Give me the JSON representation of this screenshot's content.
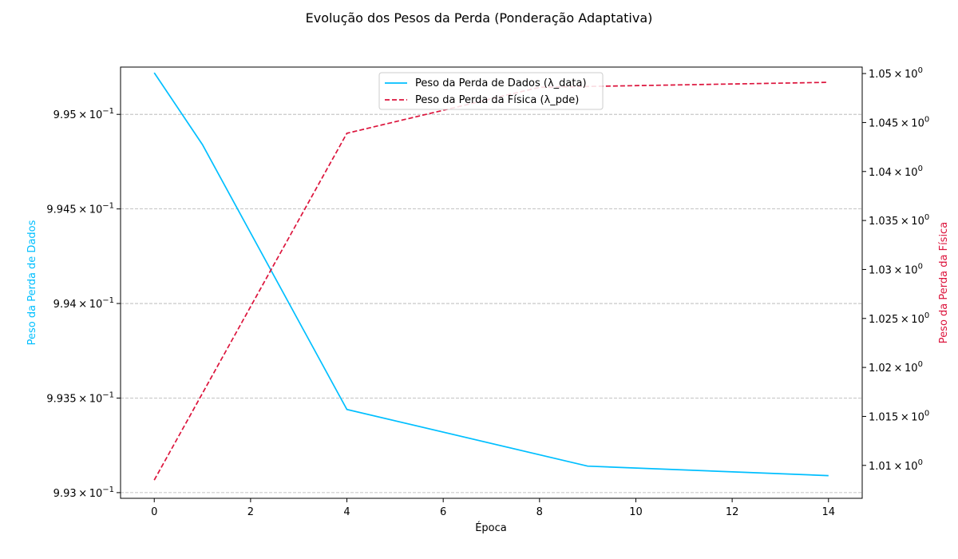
{
  "chart_data": {
    "type": "line",
    "title": "Evolução dos Pesos da Perda (Ponderação Adaptativa)",
    "xlabel": "Época",
    "ylabel_left": "Peso da Perda de Dados",
    "ylabel_right": "Peso da Perda da Física",
    "xlim": [
      -0.7,
      14.7
    ],
    "x_ticks": [
      0,
      2,
      4,
      6,
      8,
      10,
      12,
      14
    ],
    "x_tick_labels": [
      "0",
      "2",
      "4",
      "6",
      "8",
      "10",
      "12",
      "14"
    ],
    "ylim_left": [
      0.99297,
      0.99525
    ],
    "ylim_right": [
      1.00664,
      1.05066
    ],
    "grid": "horizontal dashed (left axis ticks)",
    "legend_position": "top-center",
    "left_ticks": [
      {
        "value": 0.993,
        "mantissa": "9.93",
        "base": "10",
        "exp": "−1"
      },
      {
        "value": 0.9935,
        "mantissa": "9.935",
        "base": "10",
        "exp": "−1"
      },
      {
        "value": 0.994,
        "mantissa": "9.94",
        "base": "10",
        "exp": "−1"
      },
      {
        "value": 0.9945,
        "mantissa": "9.945",
        "base": "10",
        "exp": "−1"
      },
      {
        "value": 0.995,
        "mantissa": "9.95",
        "base": "10",
        "exp": "−1"
      }
    ],
    "right_ticks": [
      {
        "value": 1.01,
        "mantissa": "1.01",
        "base": "10",
        "exp": "0"
      },
      {
        "value": 1.015,
        "mantissa": "1.015",
        "base": "10",
        "exp": "0"
      },
      {
        "value": 1.02,
        "mantissa": "1.02",
        "base": "10",
        "exp": "0"
      },
      {
        "value": 1.025,
        "mantissa": "1.025",
        "base": "10",
        "exp": "0"
      },
      {
        "value": 1.03,
        "mantissa": "1.03",
        "base": "10",
        "exp": "0"
      },
      {
        "value": 1.035,
        "mantissa": "1.035",
        "base": "10",
        "exp": "0"
      },
      {
        "value": 1.04,
        "mantissa": "1.04",
        "base": "10",
        "exp": "0"
      },
      {
        "value": 1.045,
        "mantissa": "1.045",
        "base": "10",
        "exp": "0"
      },
      {
        "value": 1.05,
        "mantissa": "1.05",
        "base": "10",
        "exp": "0"
      }
    ],
    "series": [
      {
        "name": "Peso da Perda de Dados (λ_data)",
        "axis": "left",
        "color": "#00bfff",
        "style": "solid",
        "x": [
          0,
          1,
          4,
          9,
          14
        ],
        "y": [
          0.99522,
          0.99484,
          0.99344,
          0.99314,
          0.99309
        ]
      },
      {
        "name": "Peso da Perda da Física (λ_pde)",
        "axis": "right",
        "color": "#dc143c",
        "style": "dashed",
        "x": [
          0,
          4,
          8,
          14
        ],
        "y": [
          1.0085,
          1.0439,
          1.0486,
          1.0491
        ]
      }
    ]
  }
}
